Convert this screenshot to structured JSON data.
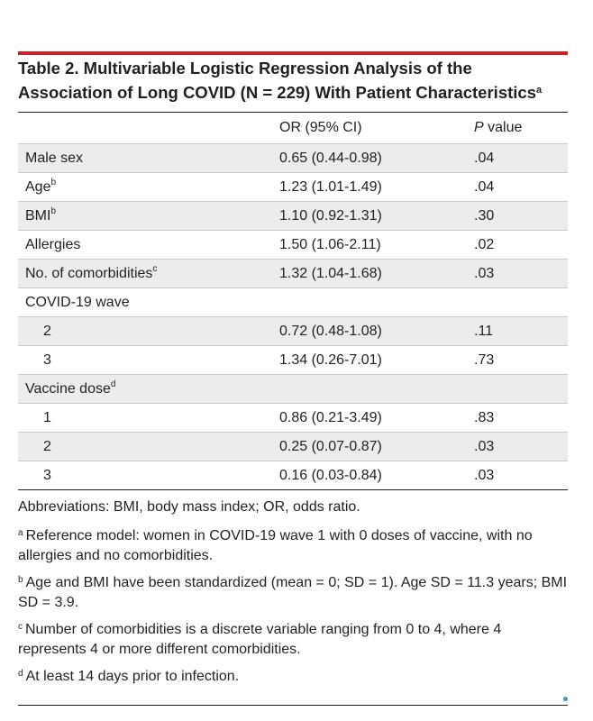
{
  "title": {
    "text": "Table 2. Multivariable Logistic Regression Analysis of the Association of Long COVID (N = 229) With Patient Characteristics",
    "footnote_mark": "a"
  },
  "table": {
    "headers": {
      "variable": "",
      "or": "OR (95% CI)",
      "p_italic": "P",
      "p_rest": " value"
    },
    "rows": [
      {
        "label": "Male sex",
        "sup": "",
        "indent": false,
        "or": "0.65 (0.44-0.98)",
        "p": ".04"
      },
      {
        "label": "Age",
        "sup": "b",
        "indent": false,
        "or": "1.23 (1.01-1.49)",
        "p": ".04"
      },
      {
        "label": "BMI",
        "sup": "b",
        "indent": false,
        "or": "1.10 (0.92-1.31)",
        "p": ".30"
      },
      {
        "label": "Allergies",
        "sup": "",
        "indent": false,
        "or": "1.50 (1.06-2.11)",
        "p": ".02"
      },
      {
        "label": "No. of comorbidities",
        "sup": "c",
        "indent": false,
        "or": "1.32 (1.04-1.68)",
        "p": ".03"
      },
      {
        "label": "COVID-19 wave",
        "sup": "",
        "indent": false,
        "or": "",
        "p": ""
      },
      {
        "label": "2",
        "sup": "",
        "indent": true,
        "or": "0.72 (0.48-1.08)",
        "p": ".11"
      },
      {
        "label": "3",
        "sup": "",
        "indent": true,
        "or": "1.34 (0.26-7.01)",
        "p": ".73"
      },
      {
        "label": "Vaccine dose",
        "sup": "d",
        "indent": false,
        "or": "",
        "p": ""
      },
      {
        "label": "1",
        "sup": "",
        "indent": true,
        "or": "0.86 (0.21-3.49)",
        "p": ".83"
      },
      {
        "label": "2",
        "sup": "",
        "indent": true,
        "or": "0.25 (0.07-0.87)",
        "p": ".03"
      },
      {
        "label": "3",
        "sup": "",
        "indent": true,
        "or": "0.16 (0.03-0.84)",
        "p": ".03"
      }
    ]
  },
  "notes": {
    "abbreviations": "Abbreviations: BMI, body mass index; OR, odds ratio.",
    "a": {
      "mark": "a",
      "text": "Reference model: women in COVID-19 wave 1 with 0 doses of vaccine, with no allergies and no comorbidities."
    },
    "b": {
      "mark": "b",
      "text": "Age and BMI have been standardized (mean = 0; SD = 1). Age SD = 11.3 years; BMI SD = 3.9."
    },
    "c": {
      "mark": "c",
      "text": "Number of comorbidities is a discrete variable ranging from 0 to 4, where 4 represents 4 or more different comorbidities."
    },
    "d": {
      "mark": "d",
      "text": "At least 14 days prior to infection."
    }
  },
  "colors": {
    "accent_rule": "#d41e27",
    "row_shade": "#ececec",
    "text": "#231f20",
    "dot": "#3a9ad9"
  }
}
